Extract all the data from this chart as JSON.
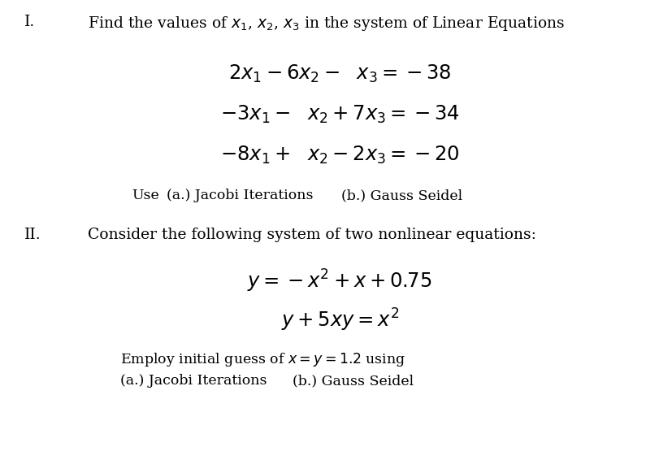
{
  "bg_color": "#ffffff",
  "text_color": "#000000",
  "figsize": [
    8.28,
    5.66
  ],
  "dpi": 100,
  "roman_I": "I.",
  "roman_II": "II.",
  "line1_label": "Find the values of $x_1$, $x_2$, $x_3$ in the system of Linear Equations",
  "eq1": "$2x_1 - 6x_2 -\\ \\ x_3 = -38$",
  "eq2": "$-3x_1 -\\ \\ x_2 + 7x_3 = -34$",
  "eq3": "$-8x_1 +\\ \\ x_2 - 2x_3 = -20$",
  "use_line": "Use",
  "use_a": "(a.) Jacobi Iterations",
  "use_b": "(b.) Gauss Seidel",
  "line2_label": "Consider the following system of two nonlinear equations:",
  "eq4": "$y = -x^2 + x + 0.75$",
  "eq5": "$y + 5xy = x^2$",
  "employ_line1": "Employ initial guess of $x = y = 1.2$ using",
  "employ_a": "(a.) Jacobi Iterations",
  "employ_b": "(b.) Gauss Seidel",
  "base_fontsize": 13.5,
  "math_fontsize": 17.5,
  "small_fontsize": 12.5
}
